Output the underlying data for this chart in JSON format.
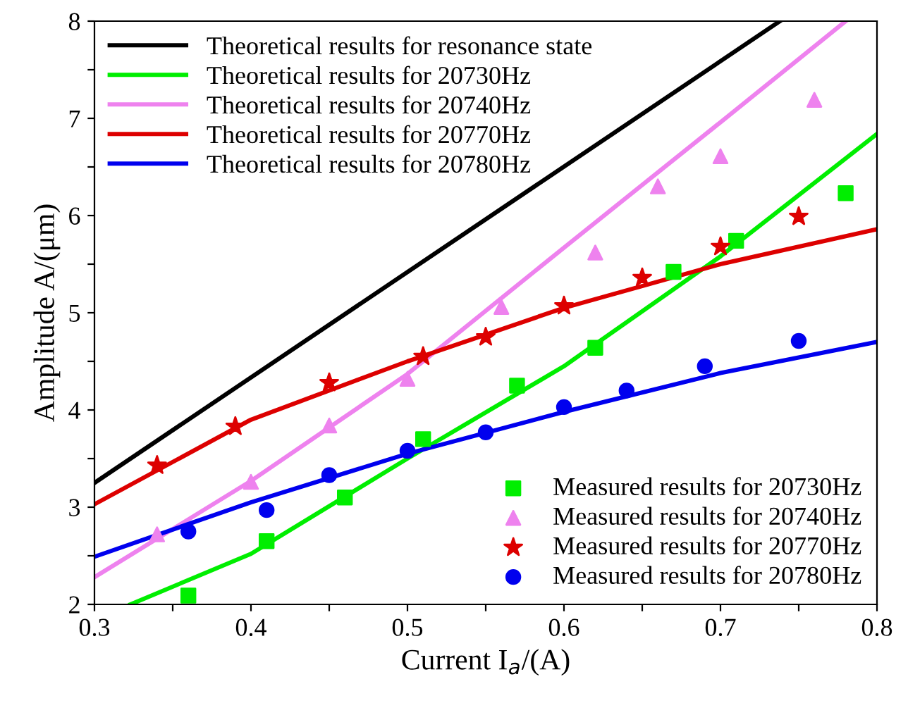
{
  "chart_data": {
    "type": "line",
    "xlabel": "Current I$_{a}$/(A)",
    "ylabel": "Amplitude A/(μm)",
    "xlim": [
      0.3,
      0.8
    ],
    "ylim": [
      2,
      8
    ],
    "xticks": [
      0.3,
      {
        "value": 0.35,
        "label": null
      },
      0.4,
      {
        "value": 0.45,
        "label": null
      },
      0.5,
      {
        "value": 0.55,
        "label": null
      },
      0.6,
      {
        "value": 0.65,
        "label": null
      },
      0.7,
      {
        "value": 0.75,
        "label": null
      },
      0.8
    ],
    "yticks": [
      2,
      {
        "value": 2.5,
        "label": null
      },
      3,
      {
        "value": 3.5,
        "label": null
      },
      4,
      {
        "value": 4.5,
        "label": null
      },
      5,
      {
        "value": 5.5,
        "label": null
      },
      6,
      {
        "value": 6.5,
        "label": null
      },
      7,
      {
        "value": 7.5,
        "label": null
      },
      8
    ],
    "legend": "top left",
    "grid": false,
    "series": [
      {
        "name": "Theoretical results for resonance state",
        "color": "#000000",
        "x": [
          0.3,
          0.738
        ],
        "values": [
          3.25,
          8
        ]
      },
      {
        "name": "Theoretical results for 20730Hz",
        "color": "#00ee00",
        "x": [
          0.323,
          0.4,
          0.5,
          0.6,
          0.7,
          0.8
        ],
        "values": [
          2.0,
          2.52,
          3.5,
          4.45,
          5.58,
          6.84
        ]
      },
      {
        "name": "Theoretical results for 20740Hz",
        "color": "#ee82ee",
        "x": [
          0.3,
          0.4,
          0.5,
          0.6,
          0.7,
          0.78
        ],
        "values": [
          2.28,
          3.27,
          4.37,
          5.67,
          6.96,
          8
        ]
      },
      {
        "name": "Theoretical results for 20770Hz",
        "color": "#dd0000",
        "x": [
          0.3,
          0.4,
          0.5,
          0.6,
          0.7,
          0.8
        ],
        "values": [
          3.03,
          3.9,
          4.5,
          5.05,
          5.5,
          5.86
        ]
      },
      {
        "name": "Theoretical results for 20780Hz",
        "color": "#0000ee",
        "x": [
          0.3,
          0.4,
          0.5,
          0.6,
          0.7,
          0.8
        ],
        "values": [
          2.49,
          3.05,
          3.55,
          3.98,
          4.38,
          4.7
        ]
      },
      {
        "name": "Measured results for 20730Hz",
        "type": "scatter",
        "marker": "square",
        "color": "#00ee00",
        "x": [
          0.36,
          0.41,
          0.46,
          0.51,
          0.57,
          0.62,
          0.67,
          0.71,
          0.78
        ],
        "values": [
          2.09,
          2.65,
          3.1,
          3.7,
          4.25,
          4.64,
          5.42,
          5.74,
          6.23
        ]
      },
      {
        "name": "Measured results for 20740Hz",
        "type": "scatter",
        "marker": "triangle",
        "color": "#ee82ee",
        "x": [
          0.34,
          0.4,
          0.45,
          0.5,
          0.56,
          0.62,
          0.66,
          0.7,
          0.76
        ],
        "values": [
          2.72,
          3.26,
          3.84,
          4.32,
          5.06,
          5.62,
          6.3,
          6.61,
          7.19
        ]
      },
      {
        "name": "Measured results for 20770Hz",
        "type": "scatter",
        "marker": "star",
        "color": "#dd0000",
        "x": [
          0.34,
          0.39,
          0.45,
          0.51,
          0.55,
          0.6,
          0.65,
          0.7,
          0.75
        ],
        "values": [
          3.43,
          3.83,
          4.28,
          4.55,
          4.75,
          5.07,
          5.36,
          5.68,
          5.99
        ]
      },
      {
        "name": "Measured results for 20780Hz",
        "type": "scatter",
        "marker": "circle",
        "color": "#0000ee",
        "x": [
          0.36,
          0.41,
          0.45,
          0.5,
          0.55,
          0.6,
          0.64,
          0.69,
          0.75
        ],
        "values": [
          2.75,
          2.97,
          3.33,
          3.58,
          3.77,
          4.03,
          4.2,
          4.45,
          4.71
        ]
      }
    ]
  }
}
